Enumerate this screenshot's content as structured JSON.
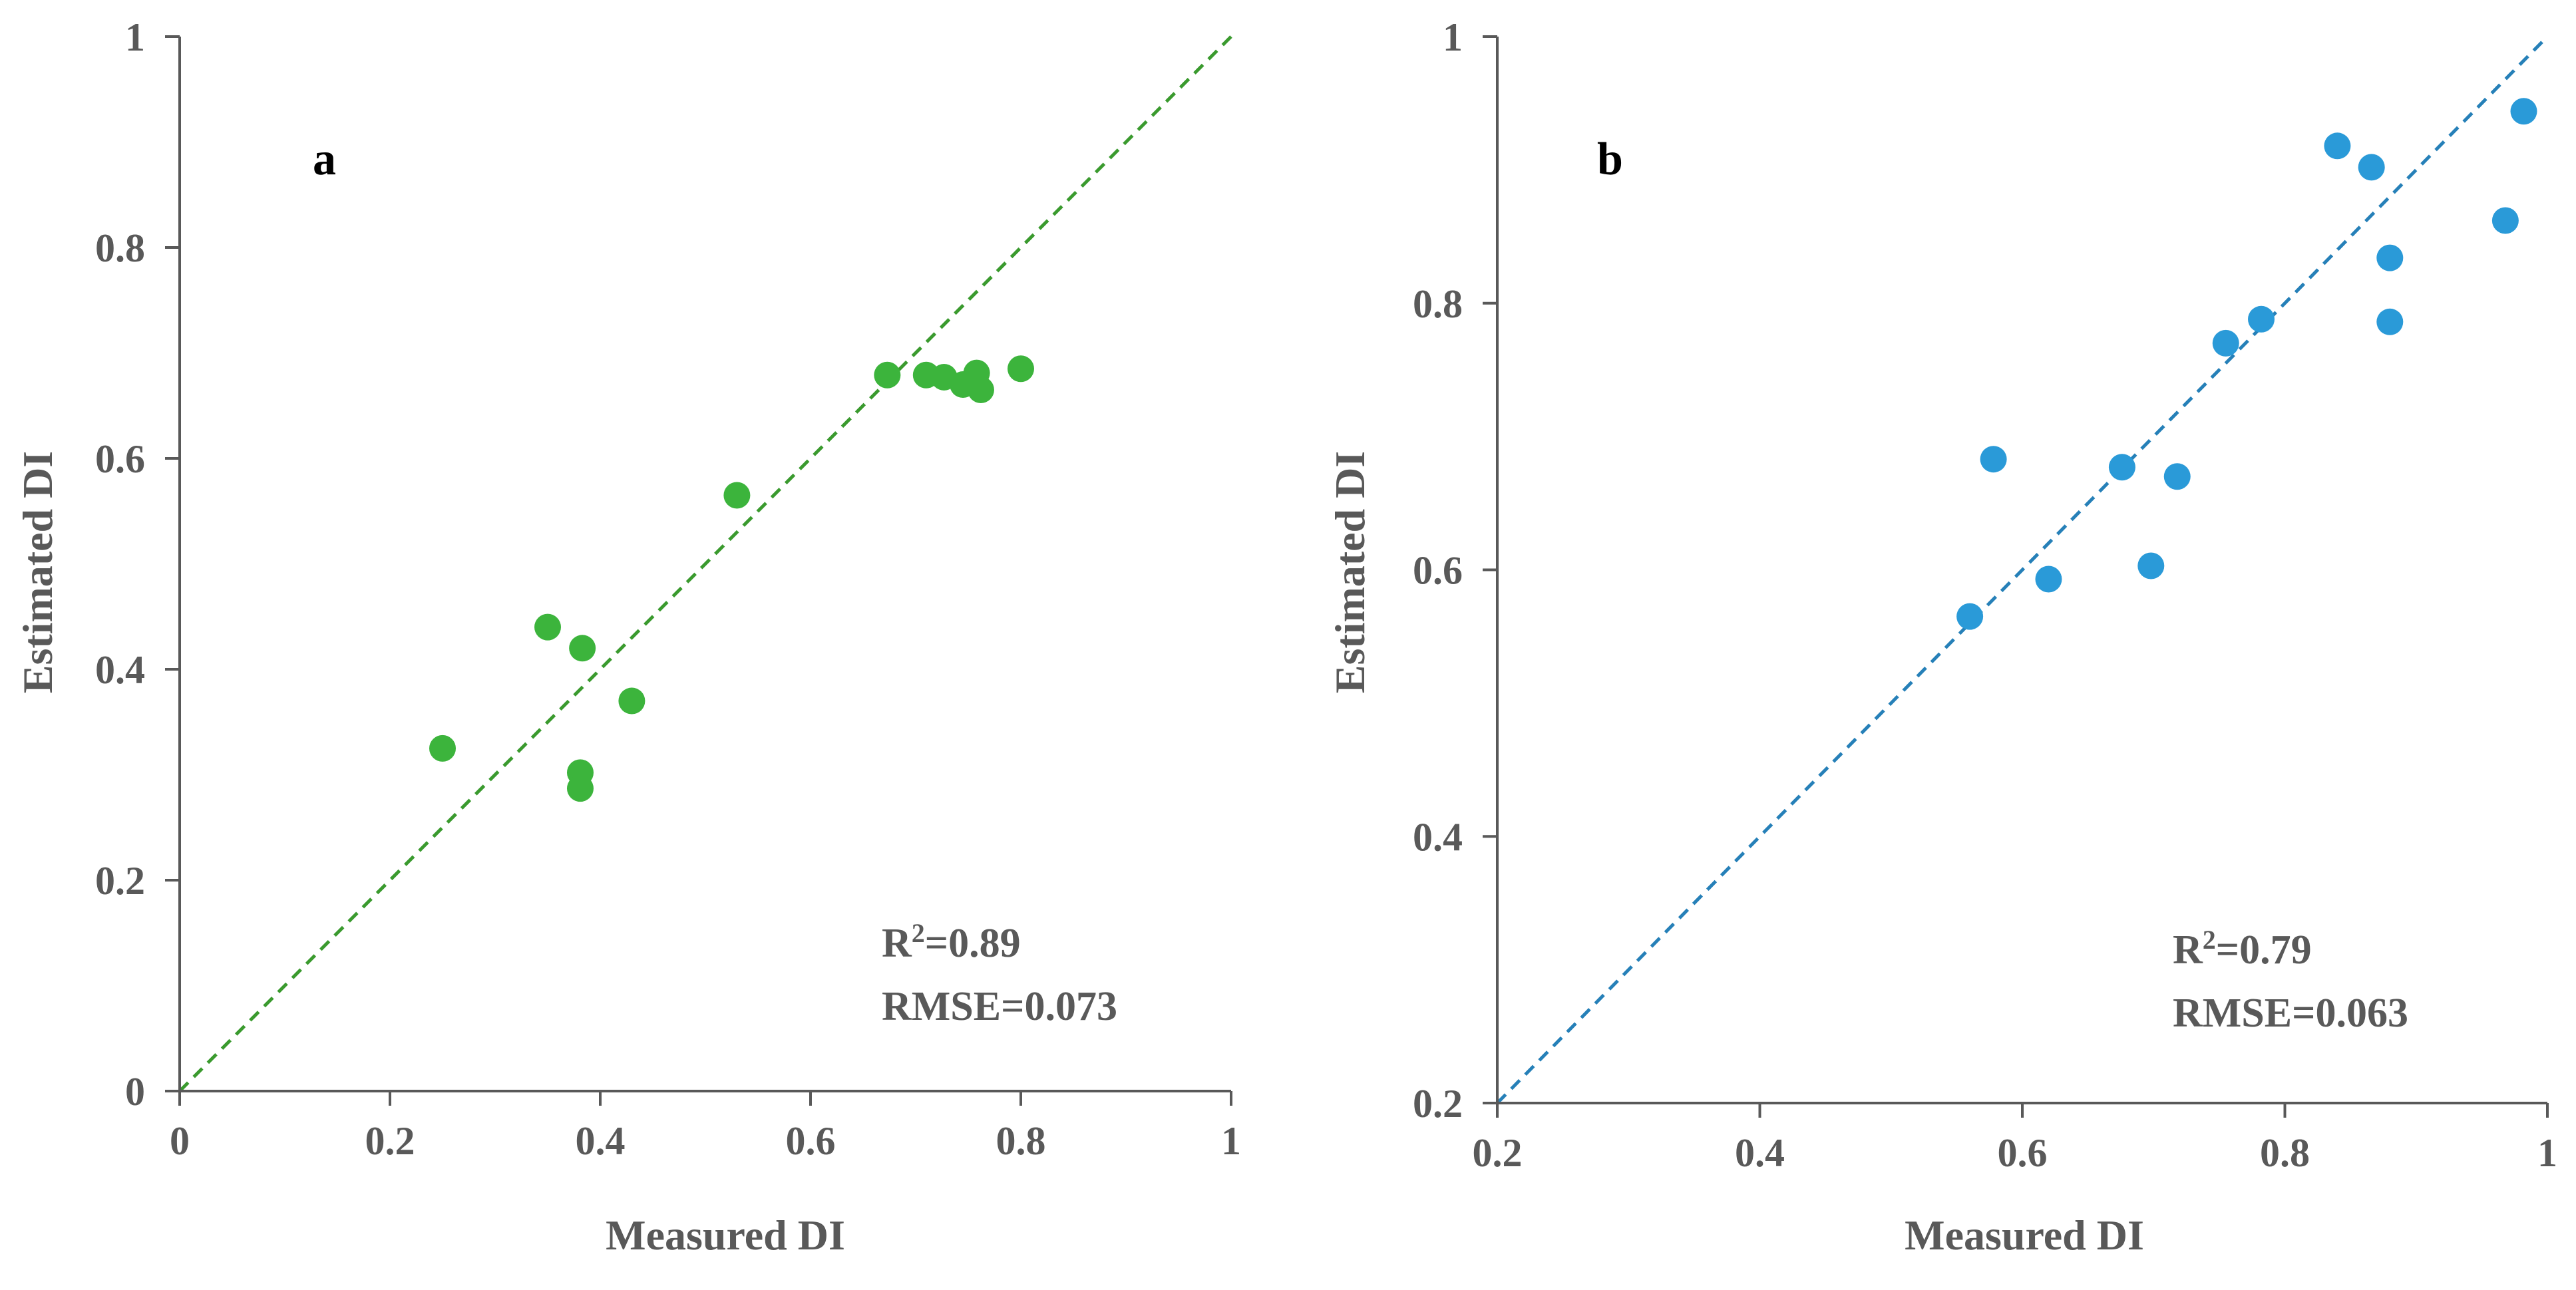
{
  "chart_data": [
    {
      "type": "scatter",
      "panel_label": "a",
      "xlabel": "Measured DI",
      "ylabel": "Estimated DI",
      "xlim": [
        0,
        1
      ],
      "ylim": [
        0,
        1
      ],
      "xticks": [
        "0",
        "0.2",
        "0.4",
        "0.6",
        "0.8",
        "1"
      ],
      "yticks": [
        "0",
        "0.2",
        "0.4",
        "0.6",
        "0.8",
        "1"
      ],
      "xtick_values": [
        0,
        0.2,
        0.4,
        0.6,
        0.8,
        1
      ],
      "ytick_values": [
        0,
        0.2,
        0.4,
        0.6,
        0.8,
        1
      ],
      "point_color": "#3CB43C",
      "line_color": "#3A9A2E",
      "reference_line": "1:1 dashed",
      "annotation_r2_base": "R",
      "annotation_r2_sup": "2",
      "annotation_r2_value": "=0.89",
      "annotation_rmse": "RMSE=0.073",
      "points": [
        {
          "x": 0.25,
          "y": 0.325
        },
        {
          "x": 0.35,
          "y": 0.44
        },
        {
          "x": 0.383,
          "y": 0.42
        },
        {
          "x": 0.381,
          "y": 0.302
        },
        {
          "x": 0.381,
          "y": 0.287
        },
        {
          "x": 0.43,
          "y": 0.37
        },
        {
          "x": 0.53,
          "y": 0.565
        },
        {
          "x": 0.673,
          "y": 0.679
        },
        {
          "x": 0.71,
          "y": 0.679
        },
        {
          "x": 0.727,
          "y": 0.677
        },
        {
          "x": 0.745,
          "y": 0.67
        },
        {
          "x": 0.758,
          "y": 0.681
        },
        {
          "x": 0.762,
          "y": 0.665
        },
        {
          "x": 0.8,
          "y": 0.685
        }
      ]
    },
    {
      "type": "scatter",
      "panel_label": "b",
      "xlabel": "Measured DI",
      "ylabel": "Estimated DI",
      "xlim": [
        0.2,
        1
      ],
      "ylim": [
        0.2,
        1
      ],
      "xticks": [
        "0.2",
        "0.4",
        "0.6",
        "0.8",
        "1"
      ],
      "yticks": [
        "0.2",
        "0.4",
        "0.6",
        "0.8",
        "1"
      ],
      "xtick_values": [
        0.2,
        0.4,
        0.6,
        0.8,
        1
      ],
      "ytick_values": [
        0.2,
        0.4,
        0.6,
        0.8,
        1
      ],
      "point_color": "#2A9AD8",
      "line_color": "#2680B8",
      "reference_line": "1:1 dashed",
      "annotation_r2_base": "R",
      "annotation_r2_sup": "2",
      "annotation_r2_value": "=0.79",
      "annotation_rmse": "RMSE=0.063",
      "points": [
        {
          "x": 0.56,
          "y": 0.565
        },
        {
          "x": 0.578,
          "y": 0.683
        },
        {
          "x": 0.62,
          "y": 0.593
        },
        {
          "x": 0.676,
          "y": 0.677
        },
        {
          "x": 0.698,
          "y": 0.603
        },
        {
          "x": 0.718,
          "y": 0.67
        },
        {
          "x": 0.755,
          "y": 0.77
        },
        {
          "x": 0.782,
          "y": 0.788
        },
        {
          "x": 0.84,
          "y": 0.918
        },
        {
          "x": 0.866,
          "y": 0.902
        },
        {
          "x": 0.88,
          "y": 0.834
        },
        {
          "x": 0.88,
          "y": 0.786
        },
        {
          "x": 0.968,
          "y": 0.862
        },
        {
          "x": 0.982,
          "y": 0.944
        }
      ]
    }
  ]
}
